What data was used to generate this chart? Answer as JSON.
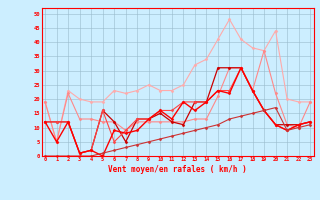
{
  "x": [
    0,
    1,
    2,
    3,
    4,
    5,
    6,
    7,
    8,
    9,
    10,
    11,
    12,
    13,
    14,
    15,
    16,
    17,
    18,
    19,
    20,
    21,
    22,
    23
  ],
  "series": [
    {
      "color": "#ffaaaa",
      "lw": 0.8,
      "marker": "D",
      "ms": 1.5,
      "y": [
        19,
        5,
        23,
        20,
        19,
        19,
        23,
        22,
        23,
        25,
        23,
        23,
        25,
        32,
        34,
        41,
        48,
        41,
        38,
        37,
        44,
        20,
        19,
        19
      ]
    },
    {
      "color": "#ff8888",
      "lw": 0.8,
      "marker": "D",
      "ms": 1.5,
      "y": [
        19,
        5,
        22,
        13,
        13,
        12,
        12,
        9,
        12,
        12,
        12,
        12,
        12,
        13,
        13,
        21,
        31,
        31,
        23,
        37,
        22,
        11,
        10,
        19
      ]
    },
    {
      "color": "#cc0000",
      "lw": 0.9,
      "marker": "D",
      "ms": 1.5,
      "y": [
        12,
        12,
        12,
        1,
        2,
        16,
        12,
        5,
        13,
        13,
        15,
        12,
        11,
        19,
        19,
        31,
        31,
        31,
        23,
        16,
        11,
        11,
        11,
        12
      ]
    },
    {
      "color": "#ff4444",
      "lw": 0.8,
      "marker": "D",
      "ms": 1.5,
      "y": [
        12,
        12,
        12,
        1,
        2,
        16,
        5,
        9,
        13,
        13,
        16,
        16,
        19,
        19,
        19,
        23,
        23,
        31,
        23,
        16,
        11,
        9,
        11,
        12
      ]
    },
    {
      "color": "#ff0000",
      "lw": 1.0,
      "marker": "D",
      "ms": 1.5,
      "y": [
        12,
        5,
        12,
        1,
        2,
        0,
        9,
        8,
        9,
        13,
        16,
        13,
        19,
        16,
        19,
        23,
        22,
        31,
        23,
        16,
        11,
        9,
        11,
        12
      ]
    },
    {
      "color": "#cc3333",
      "lw": 0.8,
      "marker": "D",
      "ms": 1.5,
      "y": [
        0,
        0,
        0,
        0,
        0,
        1,
        2,
        3,
        4,
        5,
        6,
        7,
        8,
        9,
        10,
        11,
        13,
        14,
        15,
        16,
        17,
        9,
        10,
        11
      ]
    }
  ],
  "xlim": [
    -0.3,
    23.3
  ],
  "ylim": [
    0,
    52
  ],
  "yticks": [
    0,
    5,
    10,
    15,
    20,
    25,
    30,
    35,
    40,
    45,
    50
  ],
  "xticks": [
    0,
    1,
    2,
    3,
    4,
    5,
    6,
    7,
    8,
    9,
    10,
    11,
    12,
    13,
    14,
    15,
    16,
    17,
    18,
    19,
    20,
    21,
    22,
    23
  ],
  "xlabel": "Vent moyen/en rafales ( km/h )",
  "bg_color": "#cceeff",
  "grid_color": "#99bbcc",
  "axis_color": "#ff0000",
  "label_color": "#ff0000",
  "tick_color": "#ff0000"
}
